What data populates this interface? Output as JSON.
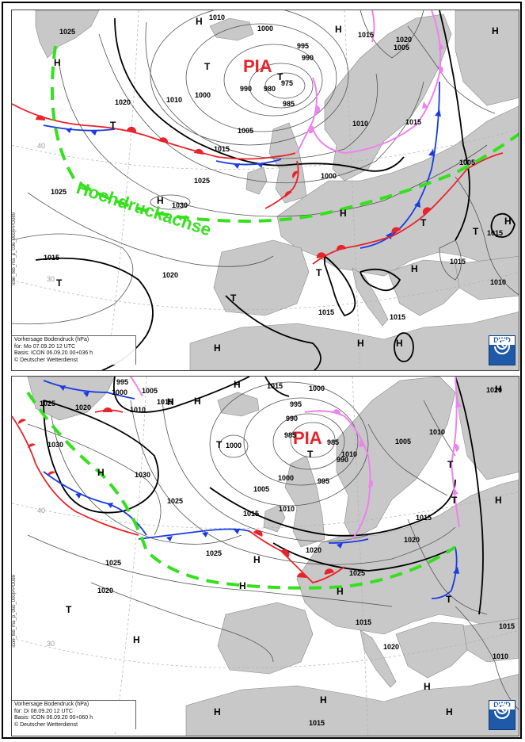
{
  "panels": [
    {
      "pia_label": "PIA",
      "axis_label": "Hochdruckachse",
      "info": {
        "line1": "Vorhersage Bodendruck (hPa)",
        "line2": "für:  Mo 07.09.20  12 UTC",
        "line3": "Basis: ICON  06.09.20 00+036 h",
        "line4": "© Deutscher Wetterdienst"
      },
      "side_code": "icon_tkb_ma_p_036_000|PPO089",
      "logo": "DWD",
      "isobars": [
        "1010",
        "1000",
        "995",
        "990",
        "975",
        "980",
        "985",
        "990",
        "1010",
        "1000",
        "1005",
        "1015",
        "1020",
        "1025",
        "1025",
        "1030",
        "1015",
        "1020",
        "1015",
        "1010",
        "1005",
        "1005",
        "1000",
        "1015",
        "1015",
        "1010",
        "1015",
        "1015",
        "1015",
        "1020",
        "1025"
      ],
      "lat_labels": [
        "40",
        "30"
      ],
      "pressure_centers": [
        "H",
        "T",
        "H",
        "H",
        "T",
        "H",
        "T",
        "H",
        "T",
        "T",
        "H",
        "T",
        "H",
        "T",
        "T",
        "H",
        "H",
        "H",
        "H"
      ]
    },
    {
      "pia_label": "PIA",
      "info": {
        "line1": "Vorhersage Bodendruck (hPa)",
        "line2": "für:  Di 08.09.20  12 UTC",
        "line3": "Basis: ICON  06.09.20 00+060 h",
        "line4": "© Deutscher Wetterdienst"
      },
      "side_code": "icon_tkb_ma_p_060_000|PPO089",
      "logo": "DWD",
      "isobars": [
        "995",
        "1000",
        "1005",
        "1015",
        "1010",
        "1025",
        "1020",
        "1015",
        "1000",
        "995",
        "1000",
        "990",
        "985",
        "985",
        "990",
        "995",
        "1000",
        "1005",
        "1010",
        "1005",
        "1010",
        "1015",
        "1020",
        "1015",
        "1020",
        "1025",
        "1025",
        "1030",
        "1030",
        "1025",
        "1020",
        "1025",
        "1020",
        "1010",
        "1015",
        "1020",
        "1015",
        "1015",
        "1010"
      ],
      "lat_labels": [
        "40",
        "30"
      ],
      "pressure_centers": [
        "H",
        "H",
        "H",
        "H",
        "T",
        "T",
        "H",
        "T",
        "T",
        "H",
        "H",
        "T",
        "H",
        "T",
        "H",
        "H",
        "H",
        "H",
        "H",
        "H"
      ]
    }
  ],
  "colors": {
    "warm_front": "#e8232a",
    "cold_front": "#1a3ce0",
    "occlusion": "#ee82ee",
    "ridge_axis": "#35e01d",
    "land": "#c8c8c8",
    "sea": "#ffffff"
  }
}
